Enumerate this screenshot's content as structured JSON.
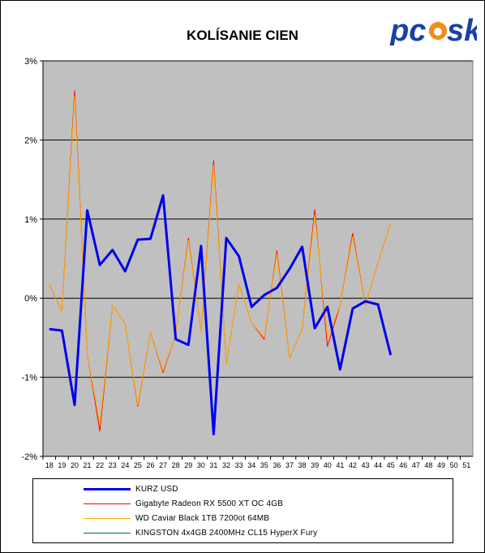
{
  "chart_data": {
    "type": "line",
    "title": "KOLÍSANIE CIEN",
    "xlabel": "",
    "ylabel": "",
    "ylim": [
      -2,
      3
    ],
    "y_ticks": [
      -2,
      -1,
      0,
      1,
      2,
      3
    ],
    "y_tick_labels": [
      "-2%",
      "-1%",
      "0%",
      "1%",
      "2%",
      "3%"
    ],
    "categories": [
      "18",
      "19",
      "20",
      "21",
      "22",
      "23",
      "24",
      "25",
      "26",
      "27",
      "28",
      "29",
      "30",
      "31",
      "32",
      "33",
      "34",
      "35",
      "36",
      "37",
      "38",
      "39",
      "40",
      "41",
      "42",
      "43",
      "44",
      "45",
      "46",
      "47",
      "48",
      "49",
      "50",
      "51"
    ],
    "grid": true,
    "legend_position": "bottom",
    "series": [
      {
        "name": "KURZ USD",
        "color": "#0000ee",
        "width": 3,
        "values": [
          -0.39,
          -0.41,
          -1.35,
          1.11,
          0.42,
          0.61,
          0.34,
          0.74,
          0.75,
          1.3,
          -0.52,
          -0.59,
          0.66,
          -1.72,
          0.76,
          0.53,
          -0.11,
          0.04,
          0.13,
          0.37,
          0.65,
          -0.38,
          -0.11,
          -0.9,
          -0.13,
          -0.04,
          -0.08,
          -0.72,
          null,
          null,
          null,
          null,
          null,
          null
        ]
      },
      {
        "name": "Gigabyte Radeon RX 5500 XT OC 4GB",
        "color": "#ff0000",
        "width": 1,
        "values": [
          0.18,
          -0.17,
          2.62,
          -0.7,
          -1.68,
          -0.09,
          -0.32,
          -1.37,
          -0.43,
          -0.94,
          -0.45,
          0.76,
          -0.43,
          1.74,
          -0.84,
          0.18,
          -0.31,
          -0.52,
          0.6,
          -0.76,
          -0.39,
          1.12,
          -0.61,
          -0.09,
          0.82,
          -0.09,
          0.45,
          0.95,
          null,
          null,
          null,
          null,
          null,
          null
        ]
      },
      {
        "name": "WD Caviar Black 1TB 7200ot 64MB",
        "color": "#ffb000",
        "width": 1,
        "values": [
          0.18,
          -0.17,
          2.55,
          -0.7,
          -1.6,
          -0.09,
          -0.32,
          -1.35,
          -0.43,
          -0.92,
          -0.45,
          0.73,
          -0.43,
          1.68,
          -0.84,
          0.18,
          -0.31,
          -0.5,
          0.56,
          -0.76,
          -0.39,
          1.05,
          -0.5,
          -0.09,
          0.78,
          -0.09,
          0.45,
          0.95,
          null,
          null,
          null,
          null,
          null,
          null
        ]
      },
      {
        "name": "KINGSTON 4x4GB 2400MHz CL15 HyperX Fury",
        "color": "#006868",
        "width": 1,
        "values": [
          null,
          null,
          null,
          null,
          null,
          null,
          null,
          null,
          null,
          null,
          null,
          null,
          null,
          null,
          null,
          null,
          null,
          null,
          null,
          null,
          null,
          null,
          null,
          null,
          null,
          null,
          null,
          null,
          null,
          null,
          null,
          null,
          null,
          null
        ]
      }
    ]
  },
  "logo": {
    "text": "pcsk",
    "colors": {
      "text": "#1a3fa8",
      "flame": "#f28a1c"
    }
  }
}
